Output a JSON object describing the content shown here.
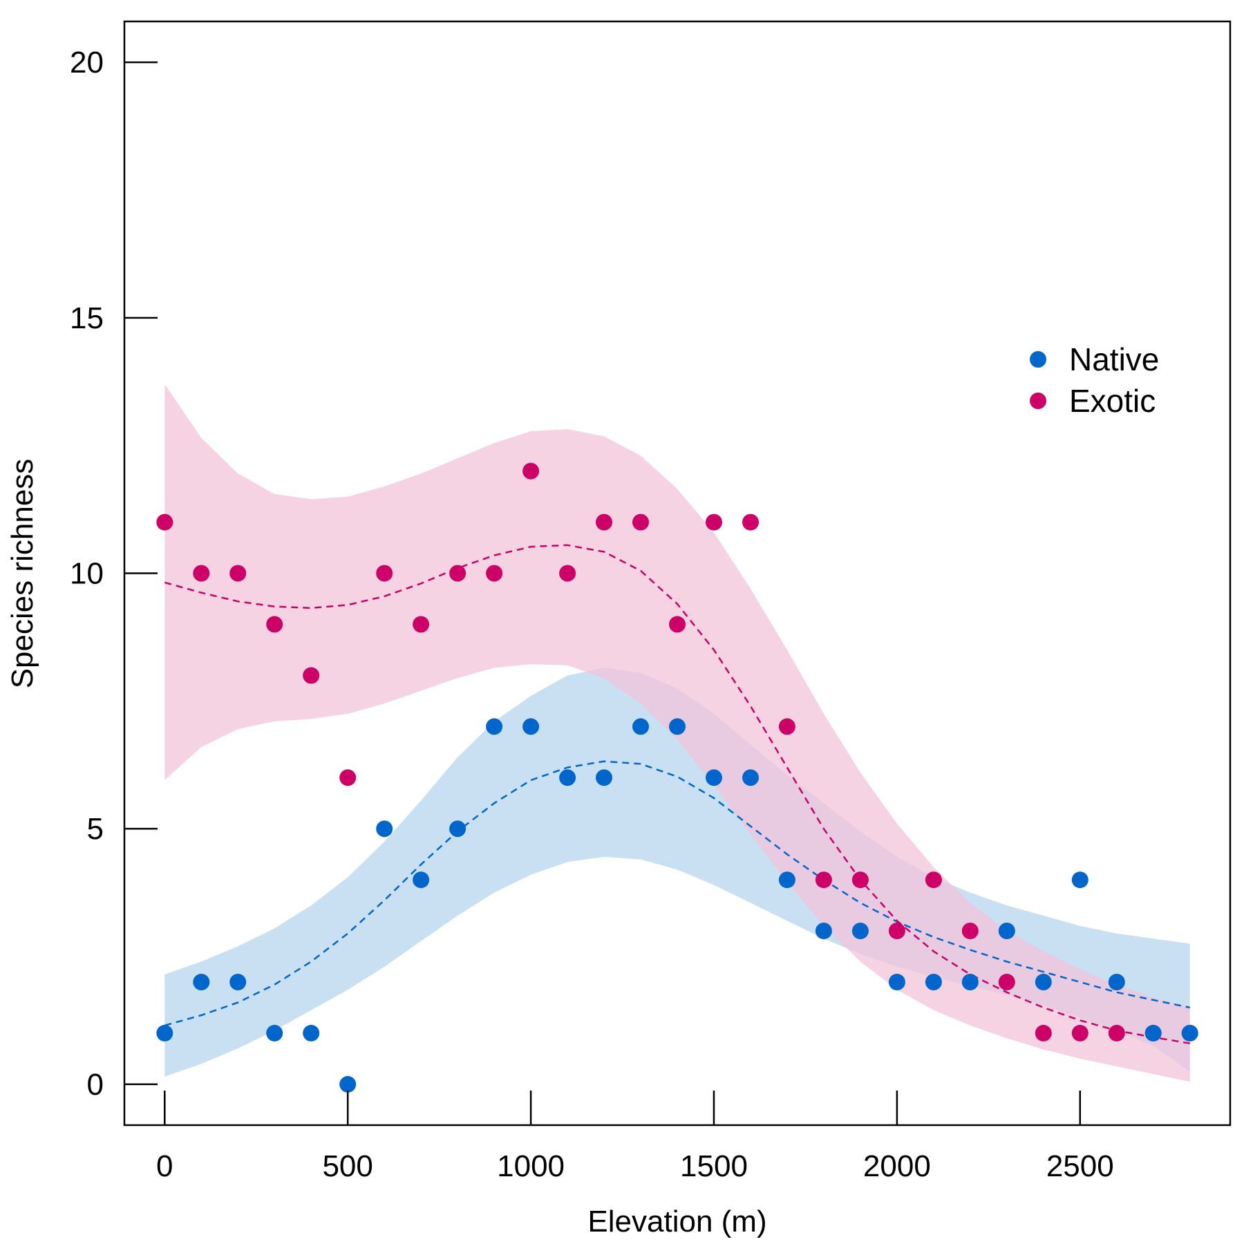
{
  "chart_data": {
    "type": "scatter",
    "title": "",
    "xlabel": "Elevation (m)",
    "ylabel": "Species richness",
    "xlim": [
      -110,
      2910
    ],
    "ylim": [
      -0.8,
      20.8
    ],
    "xticks": [
      0,
      500,
      1000,
      1500,
      2000,
      2500
    ],
    "xtick_labels": [
      "0",
      "500",
      "1000",
      "1500",
      "2000",
      "2500"
    ],
    "yticks": [
      0,
      5,
      10,
      15,
      20
    ],
    "ytick_labels": [
      "0",
      "5",
      "10",
      "15",
      "20"
    ],
    "grid": false,
    "legend_position": "right",
    "series": [
      {
        "name": "Native",
        "color": "#0066CC",
        "band_color": "#C9DFF2",
        "points": [
          [
            0,
            1
          ],
          [
            100,
            2
          ],
          [
            200,
            2
          ],
          [
            300,
            1
          ],
          [
            400,
            1
          ],
          [
            500,
            0
          ],
          [
            600,
            5
          ],
          [
            700,
            4
          ],
          [
            800,
            5
          ],
          [
            900,
            7
          ],
          [
            1000,
            7
          ],
          [
            1100,
            6
          ],
          [
            1200,
            6
          ],
          [
            1300,
            7
          ],
          [
            1400,
            7
          ],
          [
            1500,
            6
          ],
          [
            1600,
            6
          ],
          [
            1700,
            4
          ],
          [
            1800,
            3
          ],
          [
            1900,
            3
          ],
          [
            2000,
            2
          ],
          [
            2100,
            2
          ],
          [
            2200,
            2
          ],
          [
            2300,
            3
          ],
          [
            2400,
            2
          ],
          [
            2500,
            4
          ],
          [
            2600,
            2
          ],
          [
            2700,
            1
          ],
          [
            2800,
            1
          ]
        ],
        "fit": [
          [
            0,
            1.15
          ],
          [
            100,
            1.35
          ],
          [
            200,
            1.6
          ],
          [
            300,
            1.95
          ],
          [
            400,
            2.4
          ],
          [
            500,
            2.95
          ],
          [
            600,
            3.6
          ],
          [
            700,
            4.3
          ],
          [
            800,
            4.95
          ],
          [
            900,
            5.5
          ],
          [
            1000,
            5.95
          ],
          [
            1100,
            6.2
          ],
          [
            1200,
            6.32
          ],
          [
            1300,
            6.27
          ],
          [
            1400,
            6.02
          ],
          [
            1500,
            5.6
          ],
          [
            1600,
            5.05
          ],
          [
            1700,
            4.5
          ],
          [
            1800,
            4.0
          ],
          [
            1900,
            3.55
          ],
          [
            2000,
            3.18
          ],
          [
            2100,
            2.88
          ],
          [
            2200,
            2.63
          ],
          [
            2300,
            2.4
          ],
          [
            2400,
            2.2
          ],
          [
            2500,
            2.0
          ],
          [
            2600,
            1.8
          ],
          [
            2700,
            1.65
          ],
          [
            2800,
            1.5
          ]
        ],
        "upper": [
          [
            0,
            2.15
          ],
          [
            100,
            2.4
          ],
          [
            200,
            2.7
          ],
          [
            300,
            3.05
          ],
          [
            400,
            3.5
          ],
          [
            500,
            4.05
          ],
          [
            600,
            4.75
          ],
          [
            700,
            5.55
          ],
          [
            800,
            6.4
          ],
          [
            900,
            7.1
          ],
          [
            1000,
            7.6
          ],
          [
            1100,
            8.0
          ],
          [
            1200,
            8.15
          ],
          [
            1300,
            8.05
          ],
          [
            1400,
            7.75
          ],
          [
            1500,
            7.25
          ],
          [
            1600,
            6.65
          ],
          [
            1700,
            6.05
          ],
          [
            1800,
            5.5
          ],
          [
            1900,
            4.95
          ],
          [
            2000,
            4.45
          ],
          [
            2100,
            4.05
          ],
          [
            2200,
            3.75
          ],
          [
            2300,
            3.5
          ],
          [
            2400,
            3.3
          ],
          [
            2500,
            3.1
          ],
          [
            2600,
            2.95
          ],
          [
            2700,
            2.85
          ],
          [
            2800,
            2.75
          ]
        ],
        "lower": [
          [
            0,
            0.15
          ],
          [
            100,
            0.4
          ],
          [
            200,
            0.7
          ],
          [
            300,
            1.05
          ],
          [
            400,
            1.45
          ],
          [
            500,
            1.85
          ],
          [
            600,
            2.3
          ],
          [
            700,
            2.8
          ],
          [
            800,
            3.3
          ],
          [
            900,
            3.75
          ],
          [
            1000,
            4.1
          ],
          [
            1100,
            4.35
          ],
          [
            1200,
            4.45
          ],
          [
            1300,
            4.4
          ],
          [
            1400,
            4.2
          ],
          [
            1500,
            3.9
          ],
          [
            1600,
            3.55
          ],
          [
            1700,
            3.2
          ],
          [
            1800,
            2.85
          ],
          [
            1900,
            2.55
          ],
          [
            2000,
            2.3
          ],
          [
            2100,
            2.1
          ],
          [
            2200,
            1.92
          ],
          [
            2300,
            1.75
          ],
          [
            2400,
            1.55
          ],
          [
            2500,
            1.3
          ],
          [
            2600,
            1.05
          ],
          [
            2700,
            0.75
          ],
          [
            2800,
            0.25
          ]
        ]
      },
      {
        "name": "Exotic",
        "color": "#CC0066",
        "band_color": "#F2C4D9",
        "points": [
          [
            0,
            11
          ],
          [
            100,
            10
          ],
          [
            200,
            10
          ],
          [
            300,
            9
          ],
          [
            400,
            8
          ],
          [
            500,
            6
          ],
          [
            600,
            10
          ],
          [
            700,
            9
          ],
          [
            800,
            10
          ],
          [
            900,
            10
          ],
          [
            1000,
            12
          ],
          [
            1100,
            10
          ],
          [
            1200,
            11
          ],
          [
            1300,
            11
          ],
          [
            1400,
            9
          ],
          [
            1500,
            11
          ],
          [
            1600,
            11
          ],
          [
            1700,
            7
          ],
          [
            1800,
            4
          ],
          [
            1900,
            4
          ],
          [
            2000,
            3
          ],
          [
            2100,
            4
          ],
          [
            2200,
            3
          ],
          [
            2300,
            2
          ],
          [
            2400,
            1
          ],
          [
            2500,
            1
          ],
          [
            2600,
            1
          ],
          [
            2700,
            1
          ],
          [
            2800,
            1
          ]
        ],
        "fit": [
          [
            0,
            9.82
          ],
          [
            100,
            9.62
          ],
          [
            200,
            9.45
          ],
          [
            300,
            9.35
          ],
          [
            400,
            9.32
          ],
          [
            500,
            9.38
          ],
          [
            600,
            9.55
          ],
          [
            700,
            9.8
          ],
          [
            800,
            10.1
          ],
          [
            900,
            10.35
          ],
          [
            1000,
            10.52
          ],
          [
            1100,
            10.55
          ],
          [
            1200,
            10.42
          ],
          [
            1300,
            10.05
          ],
          [
            1400,
            9.4
          ],
          [
            1500,
            8.5
          ],
          [
            1600,
            7.4
          ],
          [
            1700,
            6.2
          ],
          [
            1800,
            5.0
          ],
          [
            1900,
            4.0
          ],
          [
            2000,
            3.2
          ],
          [
            2100,
            2.6
          ],
          [
            2200,
            2.15
          ],
          [
            2300,
            1.8
          ],
          [
            2400,
            1.5
          ],
          [
            2500,
            1.25
          ],
          [
            2600,
            1.05
          ],
          [
            2700,
            0.92
          ],
          [
            2800,
            0.8
          ]
        ],
        "upper": [
          [
            0,
            13.7
          ],
          [
            100,
            12.65
          ],
          [
            200,
            11.95
          ],
          [
            300,
            11.55
          ],
          [
            400,
            11.45
          ],
          [
            500,
            11.5
          ],
          [
            600,
            11.7
          ],
          [
            700,
            11.95
          ],
          [
            800,
            12.25
          ],
          [
            900,
            12.55
          ],
          [
            1000,
            12.78
          ],
          [
            1100,
            12.82
          ],
          [
            1200,
            12.68
          ],
          [
            1300,
            12.3
          ],
          [
            1400,
            11.65
          ],
          [
            1500,
            10.8
          ],
          [
            1600,
            9.7
          ],
          [
            1700,
            8.5
          ],
          [
            1800,
            7.25
          ],
          [
            1900,
            6.1
          ],
          [
            2000,
            5.1
          ],
          [
            2100,
            4.25
          ],
          [
            2200,
            3.55
          ],
          [
            2300,
            3.0
          ],
          [
            2400,
            2.6
          ],
          [
            2500,
            2.25
          ],
          [
            2600,
            1.95
          ],
          [
            2700,
            1.7
          ],
          [
            2800,
            1.5
          ]
        ],
        "lower": [
          [
            0,
            5.95
          ],
          [
            100,
            6.6
          ],
          [
            200,
            6.95
          ],
          [
            300,
            7.1
          ],
          [
            400,
            7.15
          ],
          [
            500,
            7.25
          ],
          [
            600,
            7.45
          ],
          [
            700,
            7.7
          ],
          [
            800,
            7.95
          ],
          [
            900,
            8.15
          ],
          [
            1000,
            8.22
          ],
          [
            1100,
            8.2
          ],
          [
            1200,
            7.95
          ],
          [
            1300,
            7.45
          ],
          [
            1400,
            6.75
          ],
          [
            1500,
            5.85
          ],
          [
            1600,
            4.9
          ],
          [
            1700,
            3.95
          ],
          [
            1800,
            3.1
          ],
          [
            1900,
            2.4
          ],
          [
            2000,
            1.85
          ],
          [
            2100,
            1.45
          ],
          [
            2200,
            1.15
          ],
          [
            2300,
            0.9
          ],
          [
            2400,
            0.68
          ],
          [
            2500,
            0.5
          ],
          [
            2600,
            0.35
          ],
          [
            2700,
            0.2
          ],
          [
            2800,
            0.05
          ]
        ]
      }
    ]
  }
}
